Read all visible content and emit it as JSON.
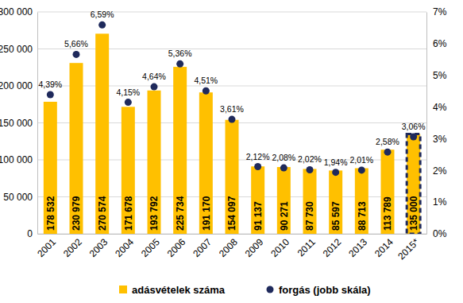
{
  "chart_data": {
    "type": "bar",
    "categories": [
      "2001",
      "2002",
      "2003",
      "2004",
      "2005",
      "2006",
      "2007",
      "2008",
      "2009",
      "2010",
      "2011",
      "2012",
      "2013",
      "2014",
      "2015*"
    ],
    "series": [
      {
        "name": "adásvételek száma",
        "type": "bar",
        "color": "#FFC000",
        "values": [
          178532,
          230979,
          270574,
          171678,
          193792,
          225734,
          191170,
          154097,
          91137,
          90271,
          87730,
          85597,
          88713,
          113789,
          135000
        ],
        "value_labels": [
          "178 532",
          "230 979",
          "270 574",
          "171 678",
          "193 792",
          "225 734",
          "191 170",
          "154 097",
          "91 137",
          "90 271",
          "87 730",
          "85 597",
          "88 713",
          "113 789",
          "135 000"
        ]
      },
      {
        "name": "forgás (jobb skála)",
        "type": "line",
        "axis": "y2",
        "color": "#1F2A5C",
        "marker": "circle",
        "line_style": "none",
        "values": [
          4.39,
          5.66,
          6.59,
          4.15,
          4.64,
          5.36,
          4.51,
          3.61,
          2.12,
          2.08,
          2.02,
          1.94,
          2.01,
          2.58,
          3.06
        ],
        "value_labels": [
          "4,39%",
          "5,66%",
          "6,59%",
          "4,15%",
          "4,64%",
          "5,36%",
          "4,51%",
          "3,61%",
          "2,12%",
          "2,08%",
          "2,02%",
          "1,94%",
          "2,01%",
          "2,58%",
          "3,06%"
        ]
      }
    ],
    "ylim": [
      0,
      300000
    ],
    "yticks": [
      0,
      {
        "value": 50000,
        "label": "50 000"
      },
      {
        "value": 100000,
        "label": "100 000"
      },
      {
        "value": 150000,
        "label": "150 000"
      },
      {
        "value": 200000,
        "label": "200 000"
      },
      {
        "value": 250000,
        "label": "250 000"
      },
      {
        "value": 300000,
        "label": "300 000"
      }
    ],
    "y2lim": [
      0,
      7
    ],
    "y2ticks": [
      {
        "value": 0,
        "label": "0%"
      },
      {
        "value": 1,
        "label": "1%"
      },
      {
        "value": 2,
        "label": "2%"
      },
      {
        "value": 3,
        "label": "3%"
      },
      {
        "value": 4,
        "label": "4%"
      },
      {
        "value": 5,
        "label": "5%"
      },
      {
        "value": 6,
        "label": "6%"
      },
      {
        "value": 7,
        "label": "7%"
      }
    ],
    "grid": true,
    "legend": "bottom",
    "data_labels": true
  }
}
